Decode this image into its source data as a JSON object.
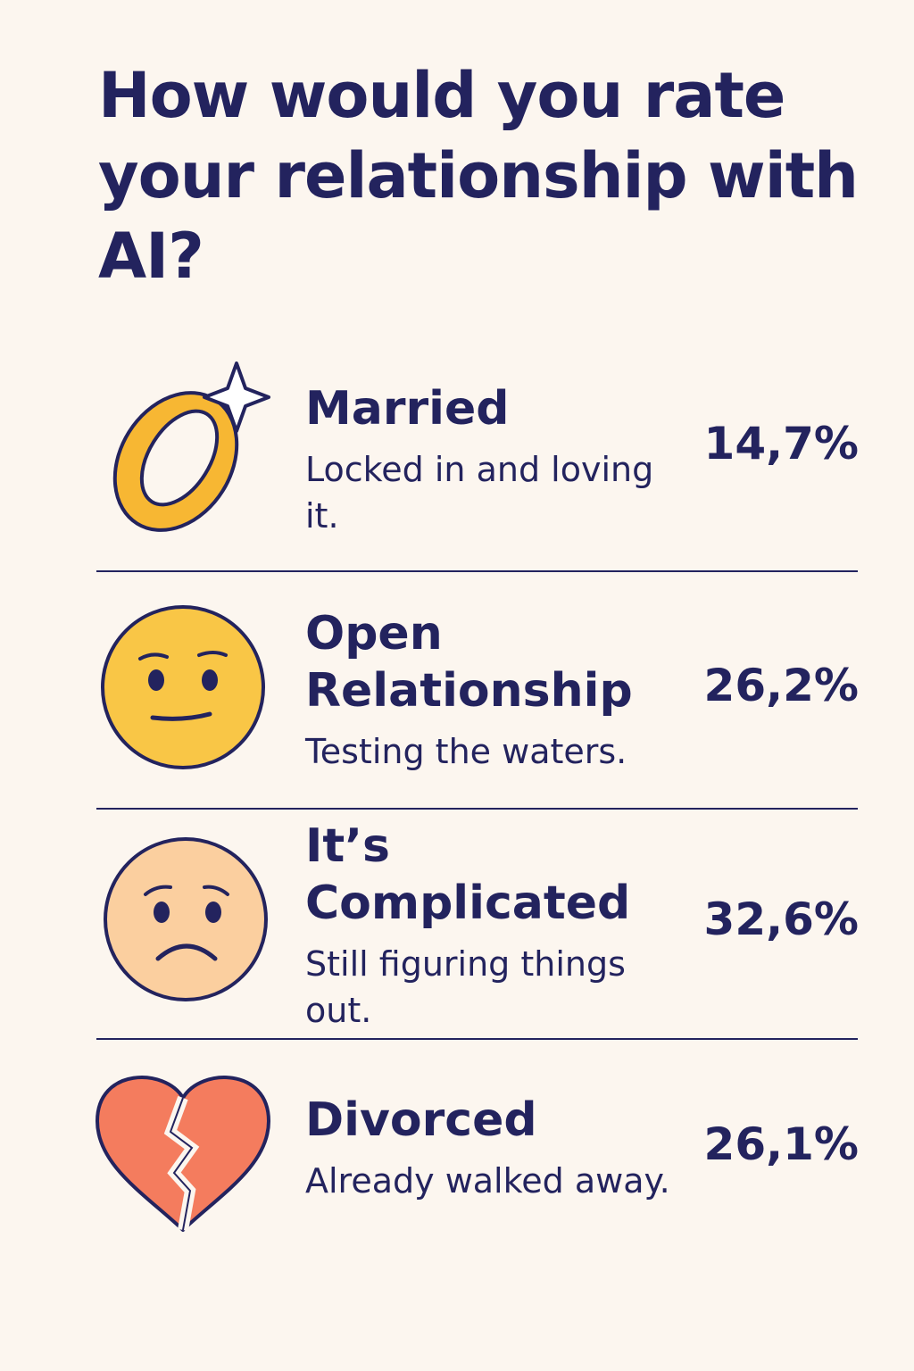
{
  "title": "How would you rate your relationship with AI?",
  "colors": {
    "background": "#fcf6ef",
    "text": "#23235e",
    "ring": "#f7b733",
    "emoji_yellow": "#f9c646",
    "emoji_peach": "#fbcf9f",
    "heart": "#f47c5e"
  },
  "options": [
    {
      "label": "Married",
      "description": "Locked in and loving it.",
      "percent": "14,7%",
      "icon": "ring-icon"
    },
    {
      "label": "Open Relationship",
      "description": "Testing the waters.",
      "percent": "26,2%",
      "icon": "neutral-face-icon"
    },
    {
      "label": "It’s Complicated",
      "description": "Still figuring things out.",
      "percent": "32,6%",
      "icon": "worried-face-icon"
    },
    {
      "label": "Divorced",
      "description": "Already walked away.",
      "percent": "26,1%",
      "icon": "broken-heart-icon"
    }
  ],
  "chart_data": {
    "type": "table",
    "title": "How would you rate your relationship with AI?",
    "categories": [
      "Married",
      "Open Relationship",
      "It’s Complicated",
      "Divorced"
    ],
    "values": [
      14.7,
      26.2,
      32.6,
      26.1
    ],
    "unit": "%"
  }
}
